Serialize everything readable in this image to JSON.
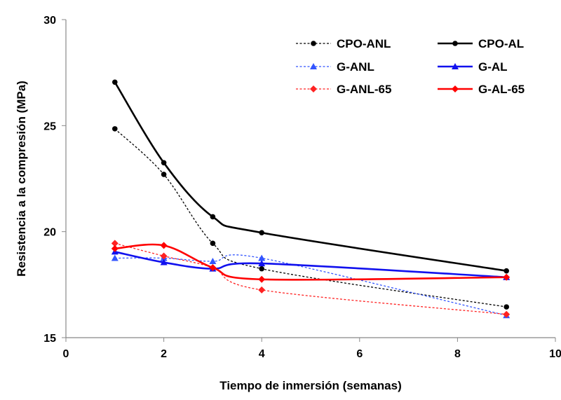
{
  "chart_data": {
    "type": "line",
    "title": "",
    "xlabel": "Tiempo de inmersión (semanas)",
    "ylabel": "Resistencia a la compresión (MPa)",
    "xlim": [
      0,
      10
    ],
    "ylim": [
      15,
      30
    ],
    "x_ticks": [
      "0",
      "2",
      "4",
      "6",
      "8",
      "10"
    ],
    "y_ticks": [
      "15",
      "20",
      "25",
      "30"
    ],
    "grid": false,
    "legend_position": "top-right",
    "series": [
      {
        "name": "CPO-ANL",
        "x": [
          1,
          2,
          3,
          4,
          9
        ],
        "values": [
          24.85,
          22.7,
          19.45,
          18.25,
          16.45
        ],
        "color": "#000000",
        "dash": "dashed",
        "marker": "circle",
        "smooth": true
      },
      {
        "name": "CPO-AL",
        "x": [
          1,
          2,
          3,
          4,
          9
        ],
        "values": [
          27.05,
          23.25,
          20.7,
          19.95,
          18.15
        ],
        "color": "#000000",
        "dash": "solid",
        "marker": "circle",
        "smooth": true
      },
      {
        "name": "G-ANL",
        "x": [
          1,
          2,
          3,
          4,
          9
        ],
        "values": [
          18.75,
          18.75,
          18.6,
          18.75,
          16.05
        ],
        "color": "#3355ff",
        "dash": "dashed",
        "marker": "triangle",
        "smooth": true
      },
      {
        "name": "G-AL",
        "x": [
          1,
          2,
          3,
          4,
          9
        ],
        "values": [
          19.05,
          18.55,
          18.25,
          18.5,
          17.85
        ],
        "color": "#1111ee",
        "dash": "solid",
        "marker": "triangle",
        "smooth": true
      },
      {
        "name": "G-ANL-65",
        "x": [
          1,
          2,
          3,
          4,
          9
        ],
        "values": [
          19.45,
          18.85,
          18.3,
          17.25,
          16.1
        ],
        "color": "#ff2222",
        "dash": "dashed",
        "marker": "diamond",
        "smooth": true
      },
      {
        "name": "G-AL-65",
        "x": [
          1,
          2,
          3,
          4,
          9
        ],
        "values": [
          19.2,
          19.35,
          18.3,
          17.75,
          17.85
        ],
        "color": "#ff0000",
        "dash": "solid",
        "marker": "diamond",
        "smooth": true
      }
    ]
  }
}
